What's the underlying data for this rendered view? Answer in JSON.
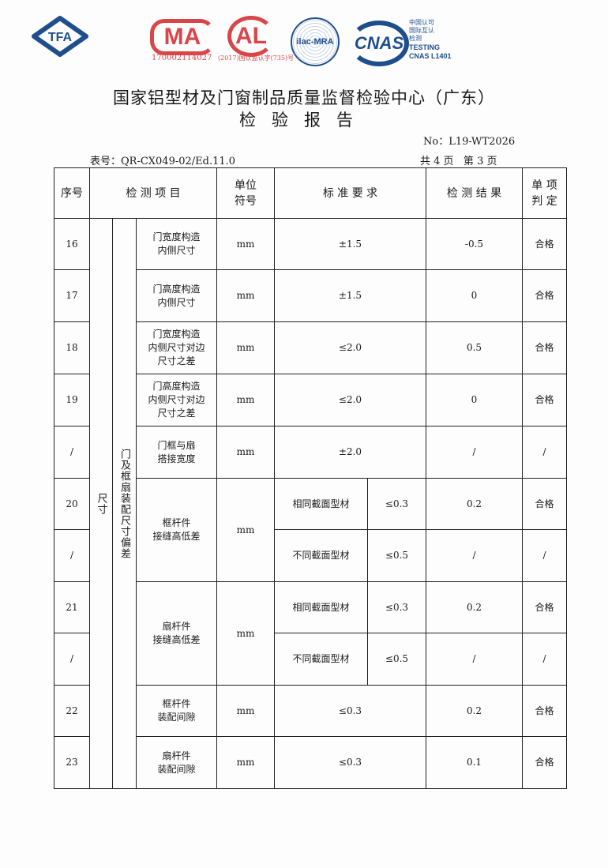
{
  "logos": {
    "tfa": "TFA",
    "cma": "MA",
    "cma_number": "170002114027",
    "cal": "AL",
    "cal_number": "(2017)国认监认字(735)号",
    "ilac": "ilac-MRA",
    "cnas": "CNAS",
    "cnas_lines": [
      "中国认可",
      "国际互认",
      "检测"
    ],
    "cnas_testing": "TESTING",
    "cnas_id": "CNAS L1401",
    "colors": {
      "blue": "#1f4e8c",
      "red": "#d9464a"
    }
  },
  "title": "国家铝型材及门窗制品质量监督检验中心（广东）",
  "subtitle": "检验报告",
  "report_no": "No：L19-WT2026",
  "form_no": "表号：QR-CX049-02/Ed.11.0",
  "page_info": "共 4 页   第 3 页",
  "headers": {
    "seq": "序号",
    "item": "检 测 项 目",
    "unit": "单位\n符号",
    "standard": "标 准 要 求",
    "result": "检 测 结 果",
    "judge": "单 项\n判 定"
  },
  "group1": "尺寸",
  "group2": "门及框扇装配尺寸偏差",
  "rows": [
    {
      "seq": "16",
      "item": "门宽度构造\n内侧尺寸",
      "unit": "mm",
      "std": "±1.5",
      "result": "-0.5",
      "judge": "合格"
    },
    {
      "seq": "17",
      "item": "门高度构造\n内侧尺寸",
      "unit": "mm",
      "std": "±1.5",
      "result": "0",
      "judge": "合格"
    },
    {
      "seq": "18",
      "item": "门宽度构造\n内侧尺寸对边\n尺寸之差",
      "unit": "mm",
      "std": "≤2.0",
      "result": "0.5",
      "judge": "合格"
    },
    {
      "seq": "19",
      "item": "门高度构造\n内侧尺寸对边\n尺寸之差",
      "unit": "mm",
      "std": "≤2.0",
      "result": "0",
      "judge": "合格"
    },
    {
      "seq": "/",
      "item": "门框与扇\n搭接宽度",
      "unit": "mm",
      "std": "±2.0",
      "result": "/",
      "judge": "/"
    },
    {
      "seq": "20",
      "item": "框杆件\n接缝高低差",
      "unit": "mm",
      "sub": "相同截面型材",
      "std": "≤0.3",
      "result": "0.2",
      "judge": "合格"
    },
    {
      "seq": "/",
      "sub": "不同截面型材",
      "std": "≤0.5",
      "result": "/",
      "judge": "/"
    },
    {
      "seq": "21",
      "item": "扇杆件\n接缝高低差",
      "unit": "mm",
      "sub": "相同截面型材",
      "std": "≤0.3",
      "result": "0.2",
      "judge": "合格"
    },
    {
      "seq": "/",
      "sub": "不同截面型材",
      "std": "≤0.5",
      "result": "/",
      "judge": "/"
    },
    {
      "seq": "22",
      "item": "框杆件\n装配间隙",
      "unit": "mm",
      "std": "≤0.3",
      "result": "0.2",
      "judge": "合格"
    },
    {
      "seq": "23",
      "item": "扇杆件\n装配间隙",
      "unit": "mm",
      "std": "≤0.3",
      "result": "0.1",
      "judge": "合格"
    }
  ]
}
